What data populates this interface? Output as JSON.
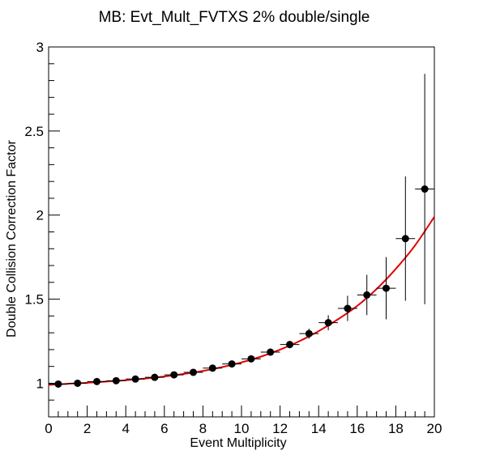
{
  "chart_data": {
    "type": "scatter",
    "title": "MB: Evt_Mult_FVTXS 2% double/single",
    "xlabel": "Event Multiplicity",
    "ylabel": "Double Collision Correction Factor",
    "xlim": [
      0,
      20
    ],
    "ylim": [
      0.8,
      3.0
    ],
    "x_ticks": [
      0,
      2,
      4,
      6,
      8,
      10,
      12,
      14,
      16,
      18,
      20
    ],
    "y_ticks": [
      1,
      1.5,
      2,
      2.5,
      3
    ],
    "y_tick_labels": [
      "1",
      "1.5",
      "2",
      "2.5",
      "3"
    ],
    "grid": false,
    "legend": "none",
    "series": [
      {
        "marker_color": "#000000",
        "x": [
          0.5,
          1.5,
          2.5,
          3.5,
          4.5,
          5.5,
          6.5,
          7.5,
          8.5,
          9.5,
          10.5,
          11.5,
          12.5,
          13.5,
          14.5,
          15.5,
          16.5,
          17.5,
          18.5,
          19.5
        ],
        "x_err": [
          0.5,
          0.5,
          0.5,
          0.5,
          0.5,
          0.5,
          0.5,
          0.5,
          0.5,
          0.5,
          0.5,
          0.5,
          0.5,
          0.5,
          0.5,
          0.5,
          0.5,
          0.5,
          0.5,
          0.5
        ],
        "y": [
          0.995,
          1.0,
          1.01,
          1.015,
          1.025,
          1.035,
          1.05,
          1.065,
          1.09,
          1.115,
          1.145,
          1.185,
          1.23,
          1.295,
          1.36,
          1.445,
          1.525,
          1.565,
          1.86,
          2.155
        ],
        "y_err": [
          0.005,
          0.005,
          0.005,
          0.006,
          0.006,
          0.007,
          0.008,
          0.009,
          0.011,
          0.013,
          0.015,
          0.018,
          0.022,
          0.03,
          0.045,
          0.075,
          0.12,
          0.185,
          0.37,
          0.685
        ]
      },
      {
        "type": "line",
        "line_color": "#e00000",
        "x": [
          0,
          1,
          2,
          3,
          4,
          5,
          6,
          7,
          8,
          9,
          10,
          11,
          12,
          13,
          14,
          15,
          16,
          17,
          18,
          19,
          20
        ],
        "y": [
          0.99,
          0.997,
          1.003,
          1.01,
          1.018,
          1.028,
          1.04,
          1.055,
          1.073,
          1.096,
          1.124,
          1.158,
          1.2,
          1.25,
          1.31,
          1.38,
          1.46,
          1.56,
          1.68,
          1.82,
          1.99
        ]
      }
    ]
  }
}
